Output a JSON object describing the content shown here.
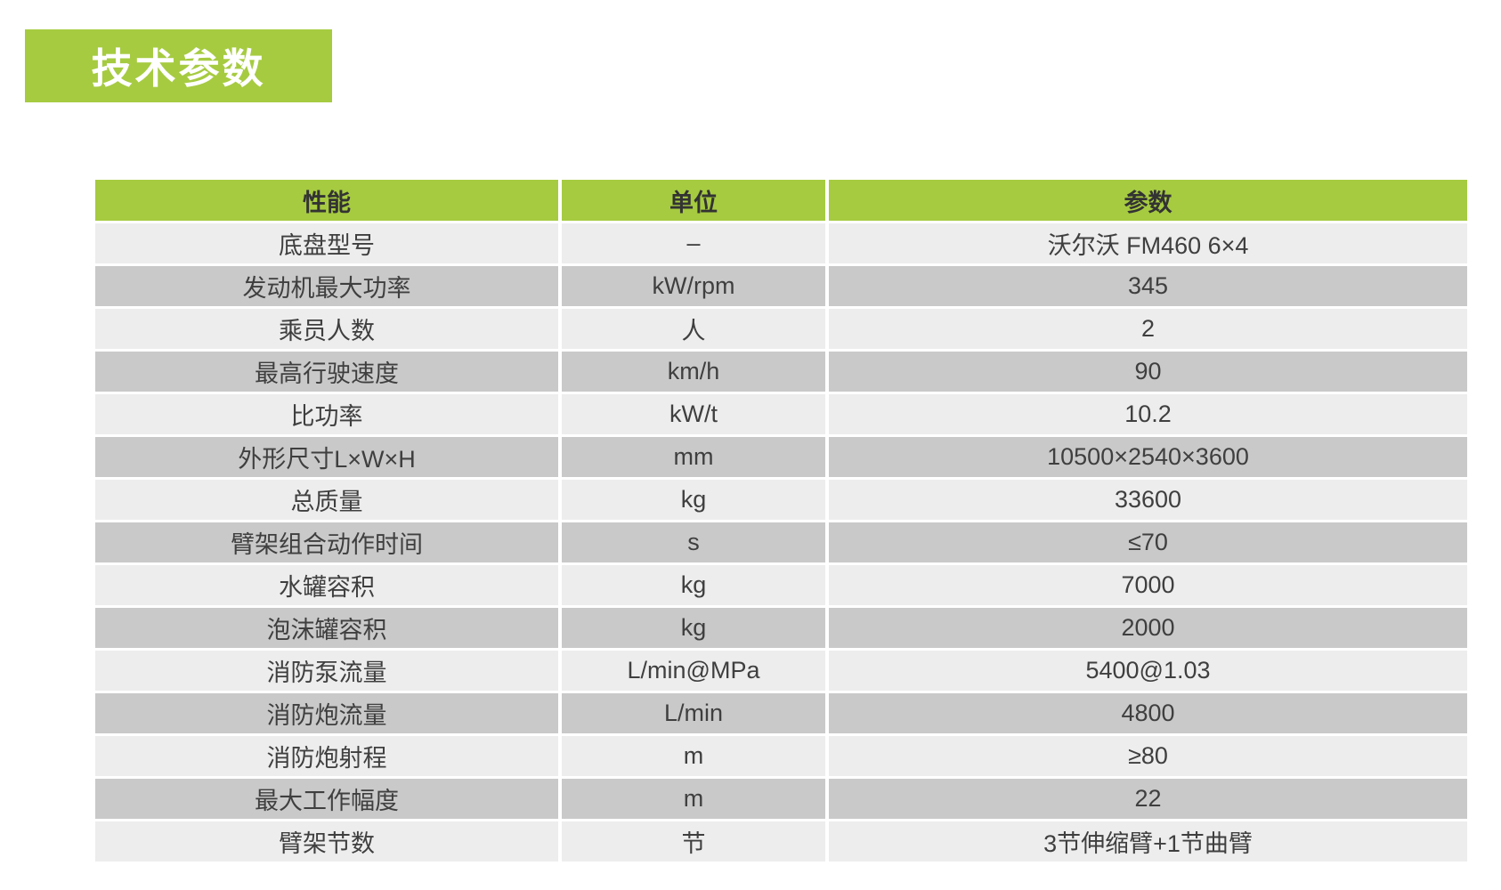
{
  "title_badge": {
    "label": "技术参数"
  },
  "colors": {
    "accent_green": "#a6cb41",
    "row_light": "#ededed",
    "row_dark": "#c9c9c9",
    "cell_text": "#3f3f3f",
    "header_text": "#333333",
    "badge_text": "#ffffff"
  },
  "table": {
    "columns": [
      "性能",
      "单位",
      "参数"
    ],
    "rows": [
      {
        "label": "底盘型号",
        "unit": "–",
        "value": "沃尔沃 FM460 6×4"
      },
      {
        "label": "发动机最大功率",
        "unit": "kW/rpm",
        "value": "345"
      },
      {
        "label": "乘员人数",
        "unit": "人",
        "value": "2"
      },
      {
        "label": "最高行驶速度",
        "unit": "km/h",
        "value": "90"
      },
      {
        "label": "比功率",
        "unit": "kW/t",
        "value": "10.2"
      },
      {
        "label": "外形尺寸L×W×H",
        "unit": "mm",
        "value": "10500×2540×3600"
      },
      {
        "label": "总质量",
        "unit": "kg",
        "value": "33600"
      },
      {
        "label": "臂架组合动作时间",
        "unit": "s",
        "value": "≤70"
      },
      {
        "label": "水罐容积",
        "unit": "kg",
        "value": "7000"
      },
      {
        "label": "泡沫罐容积",
        "unit": "kg",
        "value": "2000"
      },
      {
        "label": "消防泵流量",
        "unit": "L/min@MPa",
        "value": "5400@1.03"
      },
      {
        "label": "消防炮流量",
        "unit": "L/min",
        "value": "4800"
      },
      {
        "label": "消防炮射程",
        "unit": "m",
        "value": "≥80"
      },
      {
        "label": "最大工作幅度",
        "unit": "m",
        "value": "22"
      },
      {
        "label": "臂架节数",
        "unit": "节",
        "value": "3节伸缩臂+1节曲臂"
      }
    ]
  }
}
